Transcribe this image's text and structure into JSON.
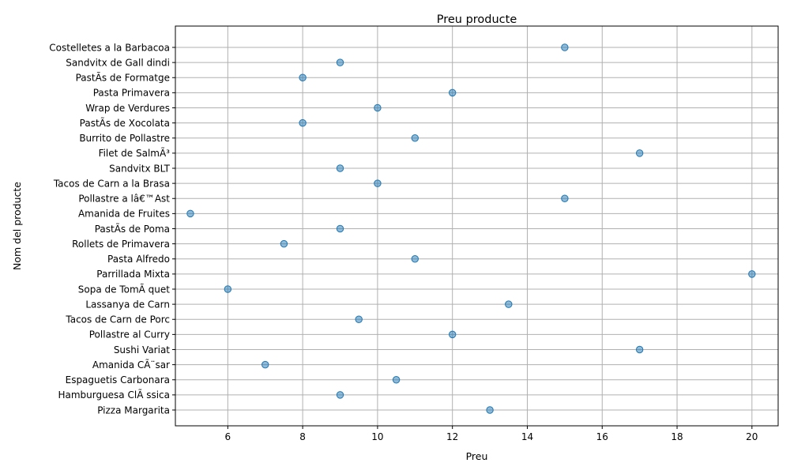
{
  "chart_data": {
    "type": "scatter",
    "title": "Preu producte",
    "xlabel": "Preu",
    "ylabel": "Nom del producte",
    "xlim": [
      4.6,
      20.7
    ],
    "xticks": [
      "6",
      "8",
      "10",
      "12",
      "14",
      "16",
      "18",
      "20"
    ],
    "grid": true,
    "marker_color": "#1f77b4",
    "categories": [
      "Pizza Margarita",
      "Hamburguesa ClÃ ssica",
      "Espaguetis Carbonara",
      "Amanida CÃ¨sar",
      "Sushi Variat",
      "Pollastre al Curry",
      "Tacos de Carn de Porc",
      "Lassanya de Carn",
      "Sopa de TomÃ quet",
      "Parrillada Mixta",
      "Pasta Alfredo",
      "Rollets de Primavera",
      "PastÃ­s de Poma",
      "Amanida de Fruites",
      "Pollastre a lâ€™Ast",
      "Tacos de Carn a la Brasa",
      "Sandvitx BLT",
      "Filet de SalmÃ³",
      "Burrito de Pollastre",
      "PastÃ­s de Xocolata",
      "Wrap de Verdures",
      "Pasta Primavera",
      "PastÃ­s de Formatge",
      "Sandvitx de Gall dindi",
      "Costelletes a la Barbacoa"
    ],
    "values": [
      13,
      9,
      10.5,
      7,
      17,
      12,
      9.5,
      13.5,
      6,
      20,
      11,
      7.5,
      9,
      5,
      15,
      10,
      9,
      17,
      11,
      8,
      10,
      12,
      8,
      9,
      15
    ]
  }
}
